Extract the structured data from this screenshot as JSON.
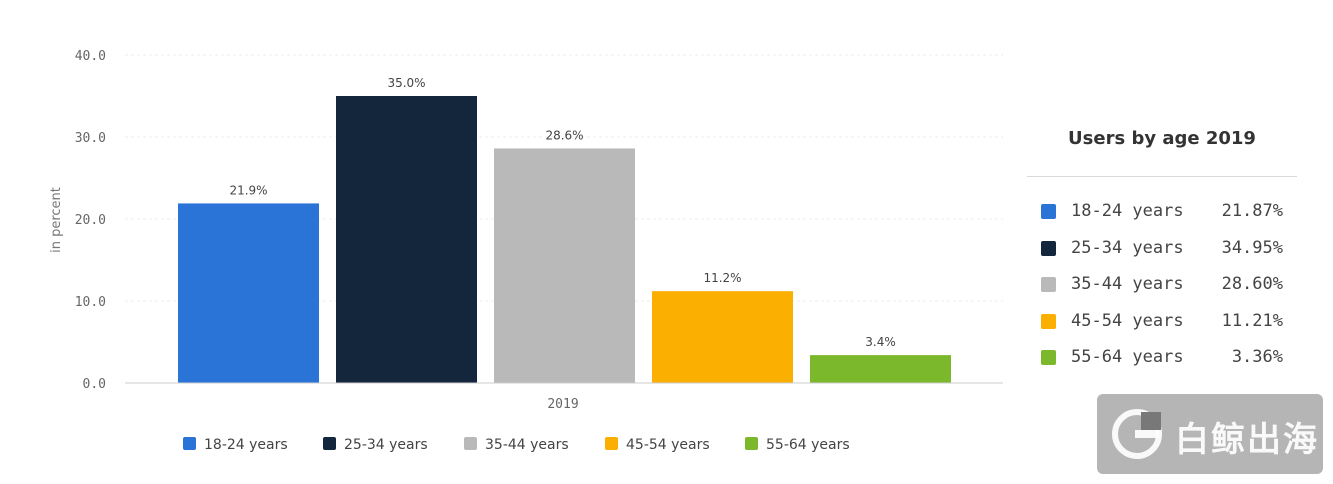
{
  "chart_data": {
    "type": "bar",
    "title": "",
    "xlabel": "",
    "ylabel": "in percent",
    "ylim": [
      0,
      40
    ],
    "yticks": [
      "0.0",
      "10.0",
      "20.0",
      "30.0",
      "40.0"
    ],
    "categories": [
      "2019"
    ],
    "grid": true,
    "legend_position": "bottom",
    "series": [
      {
        "name": "18-24 years",
        "values": [
          21.9
        ],
        "label": "21.9%",
        "color": "#2a74d8"
      },
      {
        "name": "25-34 years",
        "values": [
          35.0
        ],
        "label": "35.0%",
        "color": "#14263b"
      },
      {
        "name": "35-44 years",
        "values": [
          28.6
        ],
        "label": "28.6%",
        "color": "#b9b9b9"
      },
      {
        "name": "45-54 years",
        "values": [
          11.2
        ],
        "label": "11.2%",
        "color": "#fbaf00"
      },
      {
        "name": "55-64 years",
        "values": [
          3.4
        ],
        "label": "3.4%",
        "color": "#7cb82c"
      }
    ]
  },
  "side_panel": {
    "title": "Users by age 2019",
    "rows": [
      {
        "label": "18-24 years",
        "value": "21.87%",
        "color": "#2a74d8"
      },
      {
        "label": "25-34 years",
        "value": "34.95%",
        "color": "#14263b"
      },
      {
        "label": "35-44 years",
        "value": "28.60%",
        "color": "#b9b9b9"
      },
      {
        "label": "45-54 years",
        "value": "11.21%",
        "color": "#fbaf00"
      },
      {
        "label": "55-64 years",
        "value": "3.36%",
        "color": "#7cb82c"
      }
    ]
  },
  "watermark": {
    "text": "白鲸出海"
  }
}
